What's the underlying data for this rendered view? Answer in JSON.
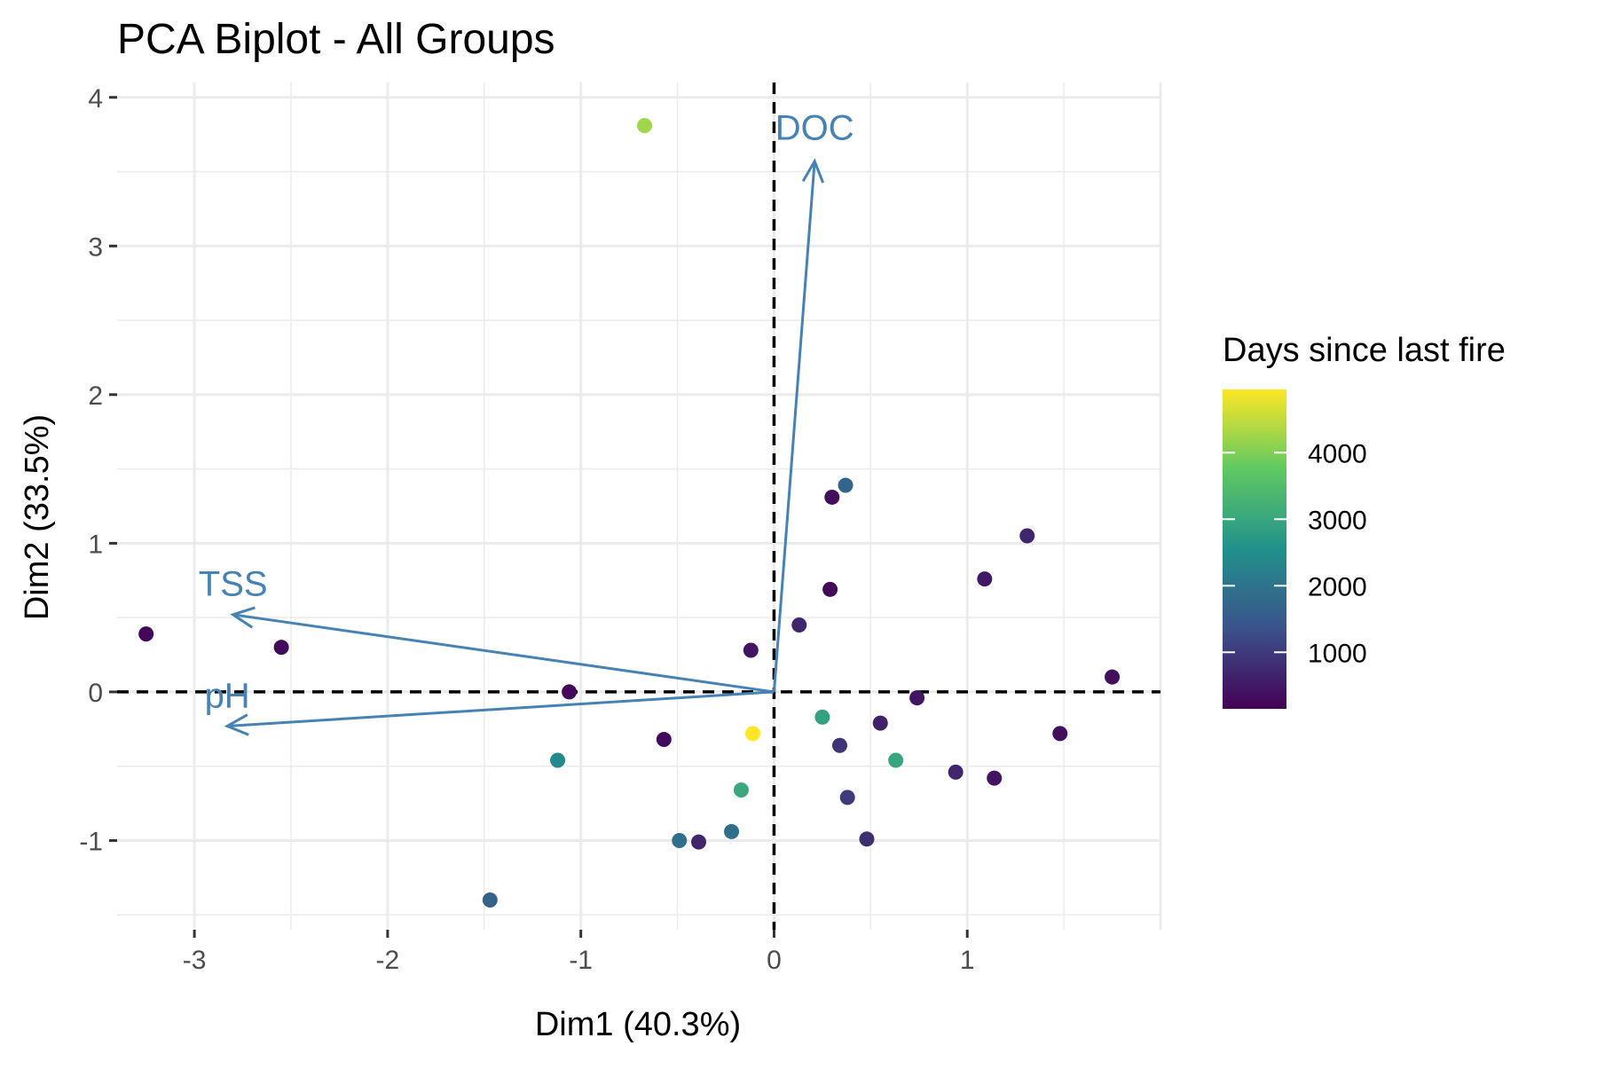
{
  "chart_data": {
    "type": "scatter",
    "title": "PCA Biplot - All Groups",
    "xlabel": "Dim1 (40.3%)",
    "ylabel": "Dim2 (33.5%)",
    "xlim": [
      -3.4,
      2.0
    ],
    "ylim": [
      -1.6,
      4.1
    ],
    "x_ticks": [
      -3,
      -2,
      -1,
      0,
      1
    ],
    "y_ticks": [
      -1,
      0,
      1,
      2,
      3,
      4
    ],
    "grid": true,
    "colors": {
      "arrow": "#4682B4",
      "viridis": [
        "#440154",
        "#3B528B",
        "#21918C",
        "#5EC962",
        "#FDE725"
      ]
    },
    "colorbar": {
      "title": "Days since last fire",
      "min": 150,
      "max": 4950,
      "ticks": [
        1000,
        2000,
        3000,
        4000
      ],
      "tick_labels": [
        "1000",
        "2000",
        "3000",
        "4000"
      ]
    },
    "points": [
      {
        "x": -0.67,
        "y": 3.81,
        "days": 4250
      },
      {
        "x": 0.37,
        "y": 1.39,
        "days": 1700
      },
      {
        "x": 0.3,
        "y": 1.31,
        "days": 350
      },
      {
        "x": 1.31,
        "y": 1.05,
        "days": 700
      },
      {
        "x": 1.09,
        "y": 0.76,
        "days": 500
      },
      {
        "x": 0.29,
        "y": 0.69,
        "days": 250
      },
      {
        "x": 0.13,
        "y": 0.45,
        "days": 700
      },
      {
        "x": -0.12,
        "y": 0.28,
        "days": 450
      },
      {
        "x": -3.25,
        "y": 0.39,
        "days": 250
      },
      {
        "x": -2.55,
        "y": 0.3,
        "days": 300
      },
      {
        "x": 1.75,
        "y": 0.1,
        "days": 350
      },
      {
        "x": -1.06,
        "y": 0.0,
        "days": 250
      },
      {
        "x": 0.74,
        "y": -0.04,
        "days": 450
      },
      {
        "x": 0.25,
        "y": -0.17,
        "days": 2900
      },
      {
        "x": 0.55,
        "y": -0.21,
        "days": 600
      },
      {
        "x": -0.11,
        "y": -0.28,
        "days": 4950
      },
      {
        "x": 1.48,
        "y": -0.28,
        "days": 350
      },
      {
        "x": -0.57,
        "y": -0.32,
        "days": 300
      },
      {
        "x": 0.34,
        "y": -0.36,
        "days": 900
      },
      {
        "x": -1.12,
        "y": -0.46,
        "days": 2400
      },
      {
        "x": 0.63,
        "y": -0.46,
        "days": 3000
      },
      {
        "x": 0.94,
        "y": -0.54,
        "days": 700
      },
      {
        "x": 1.14,
        "y": -0.58,
        "days": 450
      },
      {
        "x": -0.17,
        "y": -0.66,
        "days": 3050
      },
      {
        "x": 0.38,
        "y": -0.71,
        "days": 1000
      },
      {
        "x": -0.22,
        "y": -0.94,
        "days": 1900
      },
      {
        "x": -0.49,
        "y": -1.0,
        "days": 1900
      },
      {
        "x": -0.39,
        "y": -1.01,
        "days": 700
      },
      {
        "x": 0.48,
        "y": -0.99,
        "days": 800
      },
      {
        "x": -1.47,
        "y": -1.4,
        "days": 1650
      }
    ],
    "arrows": [
      {
        "name": "DOC",
        "x": 0.21,
        "y": 3.57,
        "label_x": 0.21,
        "label_y": 3.8
      },
      {
        "name": "TSS",
        "x": -2.8,
        "y": 0.52,
        "label_x": -2.8,
        "label_y": 0.73
      },
      {
        "name": "pH",
        "x": -2.83,
        "y": -0.23,
        "label_x": -2.83,
        "label_y": -0.02
      }
    ]
  }
}
